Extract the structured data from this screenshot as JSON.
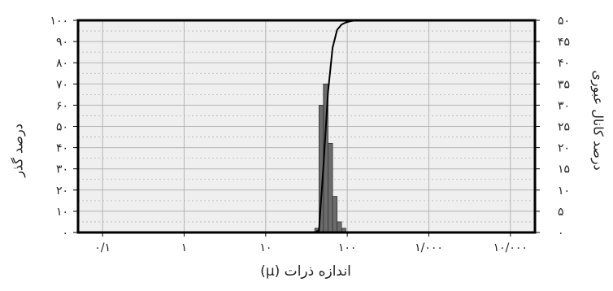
{
  "chart_data": {
    "type": "bar",
    "xlabel": "اندازه ذرات (μ)",
    "ylabel_left": "درصد گذر",
    "ylabel_right": "درصد کانال عبوری",
    "x_scale": "log",
    "xlim": [
      0.05,
      20000
    ],
    "x_ticks": [
      {
        "value": 0.1,
        "label": "۰/۱"
      },
      {
        "value": 1,
        "label": "۱"
      },
      {
        "value": 10,
        "label": "۱۰"
      },
      {
        "value": 100,
        "label": "۱۰۰"
      },
      {
        "value": 1000,
        "label": "۱/۰۰۰"
      },
      {
        "value": 10000,
        "label": "۱۰/۰۰۰"
      }
    ],
    "y_left": {
      "lim": [
        0,
        100
      ],
      "ticks": [
        {
          "value": 0,
          "label": "۰"
        },
        {
          "value": 10,
          "label": "۱۰"
        },
        {
          "value": 20,
          "label": "۲۰"
        },
        {
          "value": 30,
          "label": "۳۰"
        },
        {
          "value": 40,
          "label": "۴۰"
        },
        {
          "value": 50,
          "label": "۵۰"
        },
        {
          "value": 60,
          "label": "۶۰"
        },
        {
          "value": 70,
          "label": "۷۰"
        },
        {
          "value": 80,
          "label": "۸۰"
        },
        {
          "value": 90,
          "label": "۹۰"
        },
        {
          "value": 100,
          "label": "۱۰۰"
        }
      ]
    },
    "y_right": {
      "lim": [
        0,
        50
      ],
      "ticks": [
        {
          "value": 0,
          "label": "۰"
        },
        {
          "value": 5,
          "label": "۵"
        },
        {
          "value": 10,
          "label": "۱۰"
        },
        {
          "value": 15,
          "label": "۱۵"
        },
        {
          "value": 20,
          "label": "۲۰"
        },
        {
          "value": 25,
          "label": "۲۵"
        },
        {
          "value": 30,
          "label": "۳۰"
        },
        {
          "value": 35,
          "label": "۳۵"
        },
        {
          "value": 40,
          "label": "۴۰"
        },
        {
          "value": 45,
          "label": "۴۵"
        },
        {
          "value": 50,
          "label": "۵۰"
        }
      ]
    },
    "bars": [
      {
        "x_from": 40,
        "x_to": 45,
        "value": 1
      },
      {
        "x_from": 45,
        "x_to": 51,
        "value": 30
      },
      {
        "x_from": 51,
        "x_to": 58,
        "value": 35
      },
      {
        "x_from": 58,
        "x_to": 66,
        "value": 21
      },
      {
        "x_from": 66,
        "x_to": 75,
        "value": 8.5
      },
      {
        "x_from": 75,
        "x_to": 85,
        "value": 2.5
      },
      {
        "x_from": 85,
        "x_to": 96,
        "value": 1
      }
    ],
    "cumulative": {
      "x": [
        40,
        45,
        51,
        58,
        66,
        75,
        85,
        96,
        110,
        130,
        200,
        20000
      ],
      "y": [
        0,
        1,
        31,
        66,
        87,
        95.5,
        98,
        99,
        99.6,
        100,
        100,
        100
      ]
    },
    "grid": true,
    "colors": {
      "bar": "#6b6b6b",
      "plot_background": "#efefef",
      "grid": "#b5b5b5",
      "frame": "#000000",
      "line": "#000000"
    }
  }
}
